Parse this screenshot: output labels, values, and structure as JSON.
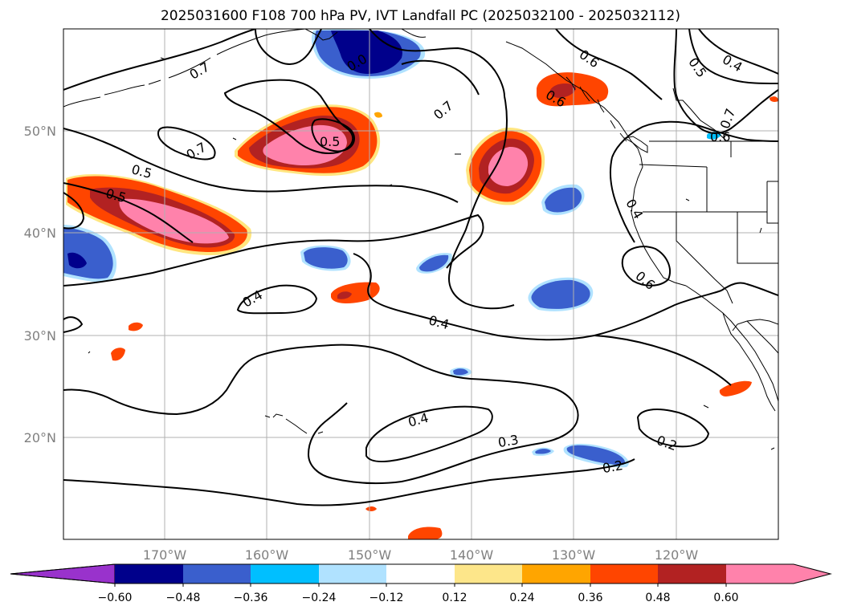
{
  "title": "2025031600 F108 700 hPa PV, IVT Landfall PC (2025032100 - 2025032112)",
  "latitude_labels": [
    "50°N",
    "40°N",
    "30°N",
    "20°N"
  ],
  "longitude_labels": [
    "170°W",
    "160°W",
    "150°W",
    "140°W",
    "130°W",
    "120°W"
  ],
  "colorbar": {
    "tick_labels": [
      "−0.60",
      "−0.48",
      "−0.36",
      "−0.24",
      "−0.12",
      "0.12",
      "0.24",
      "0.36",
      "0.48",
      "0.60"
    ],
    "colors": [
      "#9932cc",
      "#00008b",
      "#3a5fcd",
      "#00bfff",
      "#b0e2ff",
      "#ffffff",
      "#fde68a",
      "#ffa500",
      "#ff4500",
      "#b22222",
      "#ff82ab",
      "#ff82ab"
    ]
  },
  "contour_labels": [
    "0.7",
    "0.7",
    "0.7",
    "0.5",
    "0.5",
    "0.5",
    "0.4",
    "0.4",
    "0.4",
    "0.3",
    "0.2",
    "0.2",
    "0.6",
    "0.6",
    "0.5",
    "0.4",
    "0.7",
    "0.6",
    "0.6",
    "0.4",
    "0.0"
  ],
  "colors": {
    "grid": "#b0b0b0",
    "contour": "#000000",
    "coast": "#000000",
    "axis_label": "#808080"
  }
}
